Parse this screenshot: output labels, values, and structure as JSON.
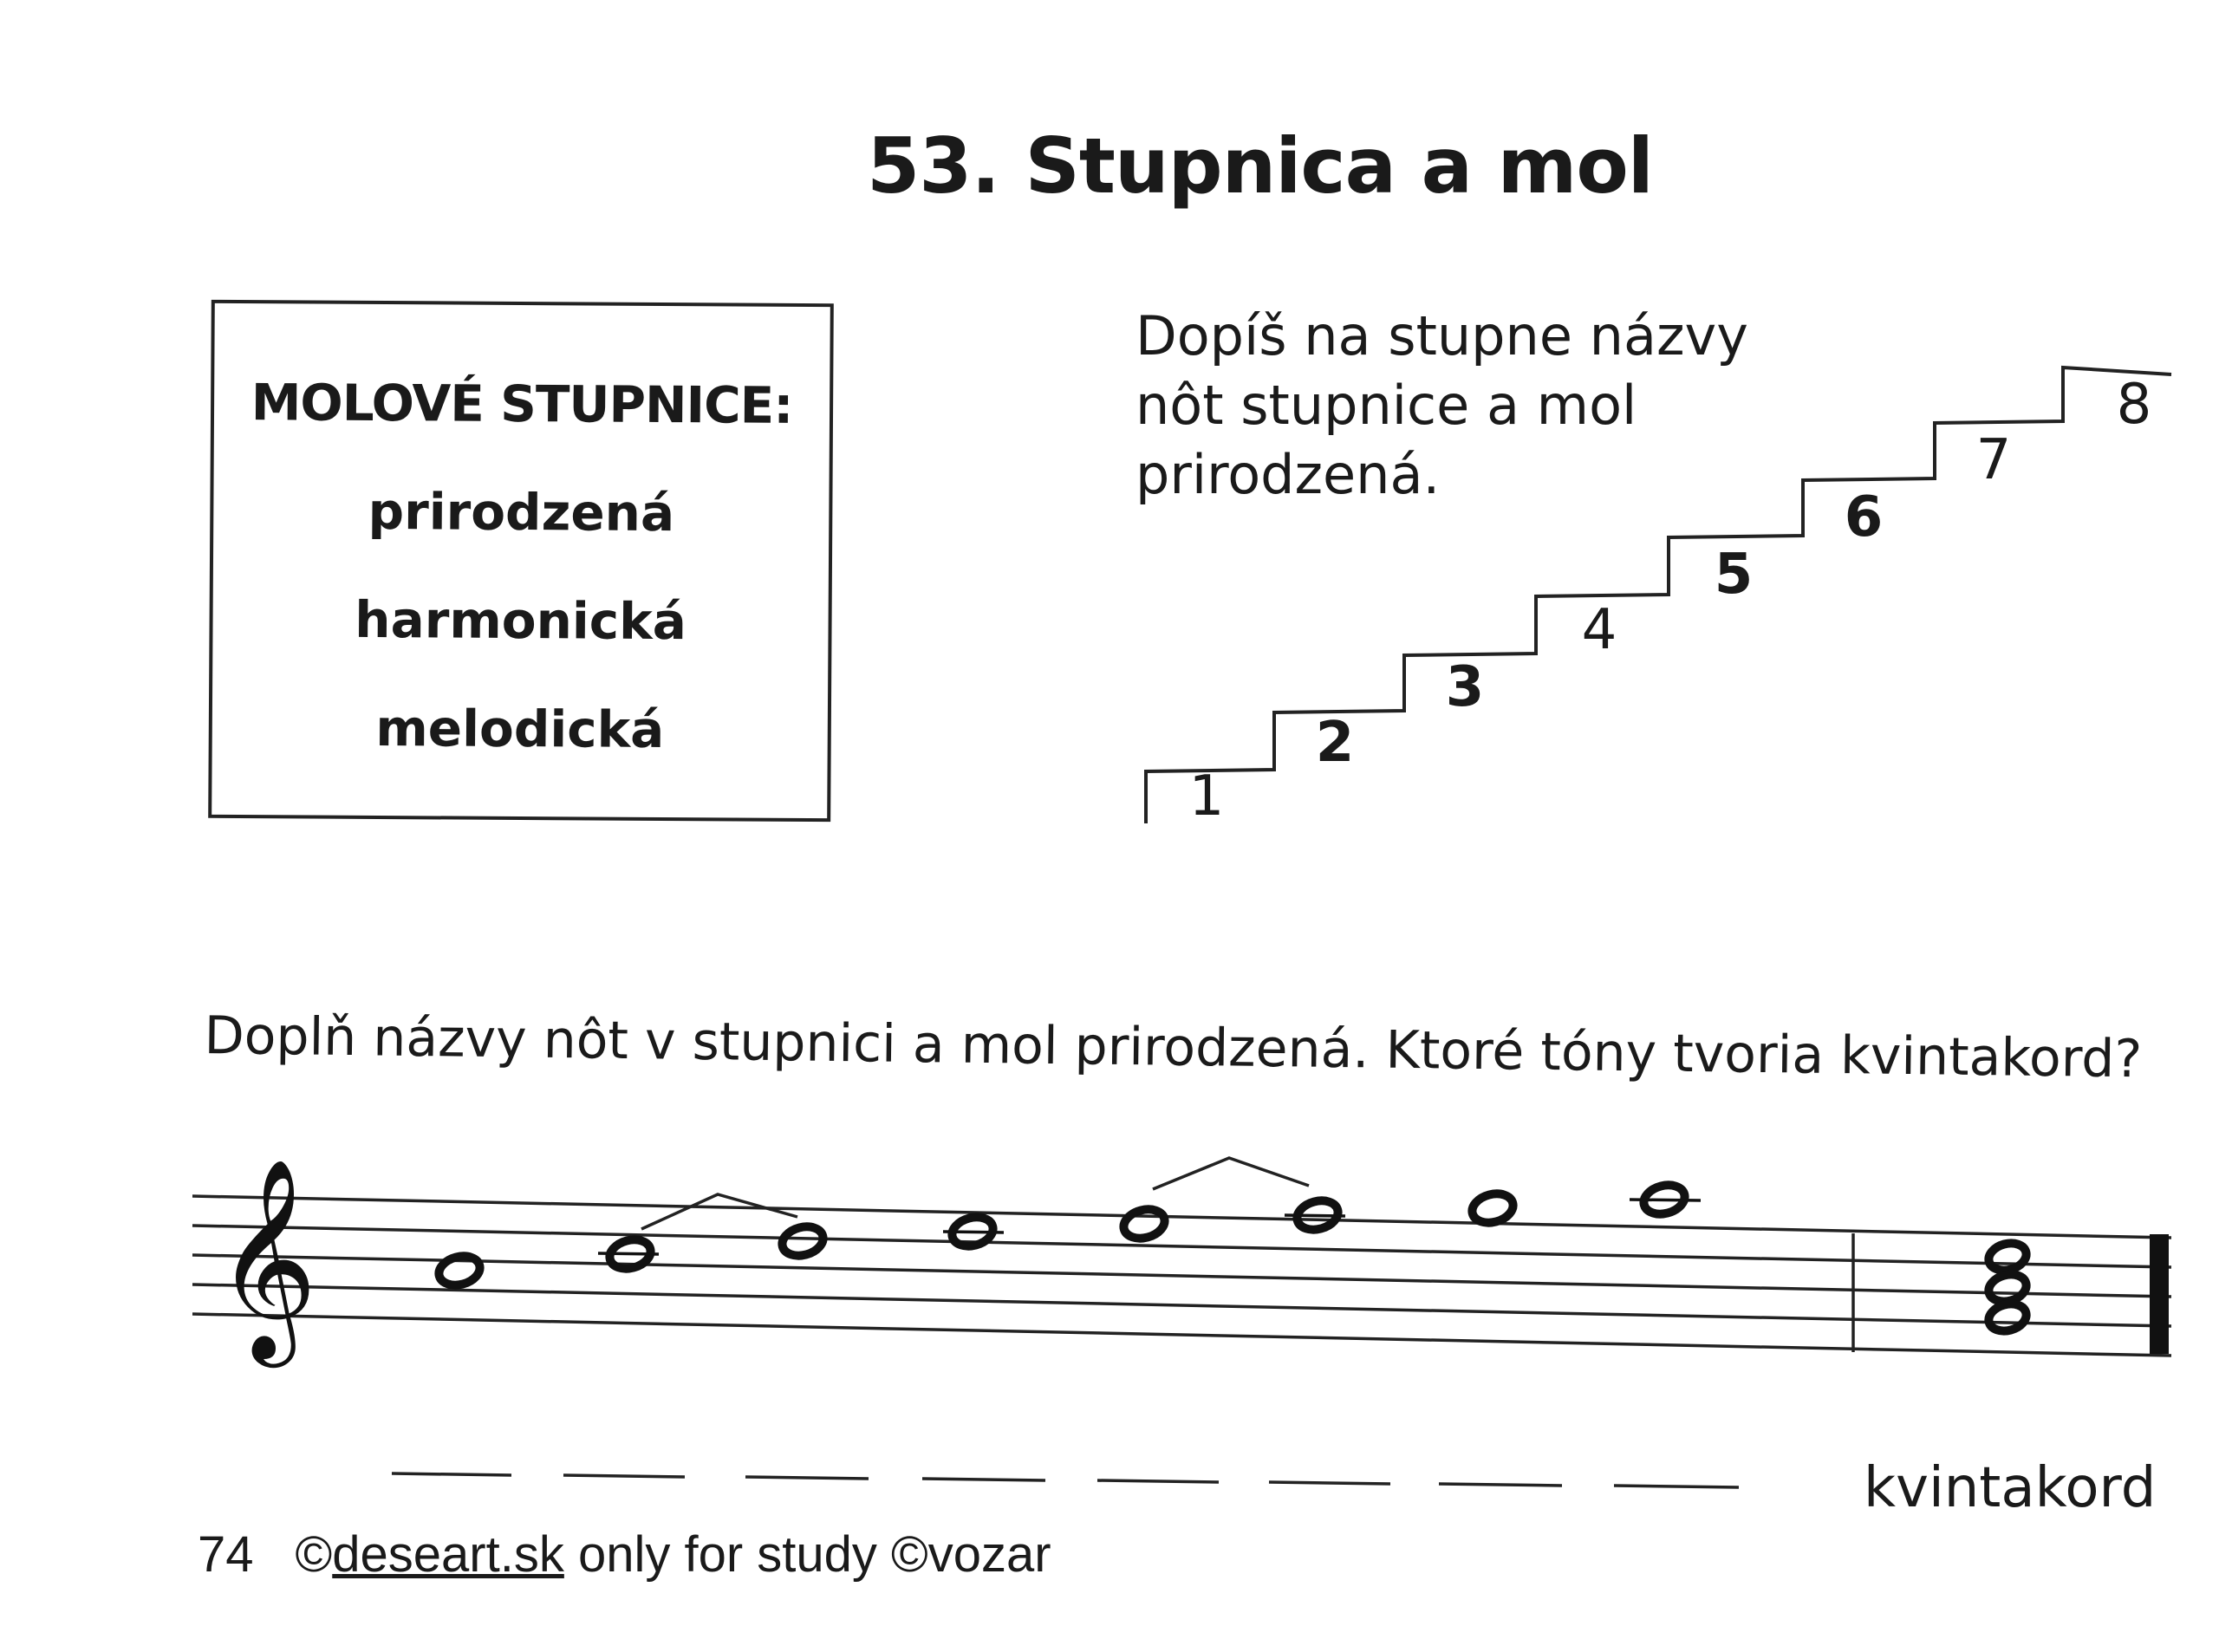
{
  "page": {
    "title": "53. Stupnica a mol"
  },
  "infobox": {
    "heading": "MOLOVÉ STUPNICE:",
    "types": [
      "prirodzená",
      "harmonická",
      "melodická"
    ]
  },
  "stairs": {
    "instruction": [
      "Dopíš na stupne názvy",
      "nôt stupnice a mol",
      "prirodzená."
    ],
    "steps": [
      {
        "label": "1",
        "bold": false
      },
      {
        "label": "2",
        "bold": true
      },
      {
        "label": "3",
        "bold": true
      },
      {
        "label": "4",
        "bold": false
      },
      {
        "label": "5",
        "bold": true
      },
      {
        "label": "6",
        "bold": true
      },
      {
        "label": "7",
        "bold": false
      },
      {
        "label": "8",
        "bold": false
      }
    ]
  },
  "staff_exercise": {
    "instruction": "Doplň názvy nôt v stupnici a mol prirodzená. Ktoré tóny tvoria kvintakord?",
    "clef": "treble-clef-icon",
    "answer_blanks_count": 8,
    "chord_label": "kvintakord"
  },
  "footer": {
    "page_number": "74",
    "copyright_prefix": "©",
    "link_text": "deseart.sk",
    "suffix": " only for study ©vozar"
  }
}
